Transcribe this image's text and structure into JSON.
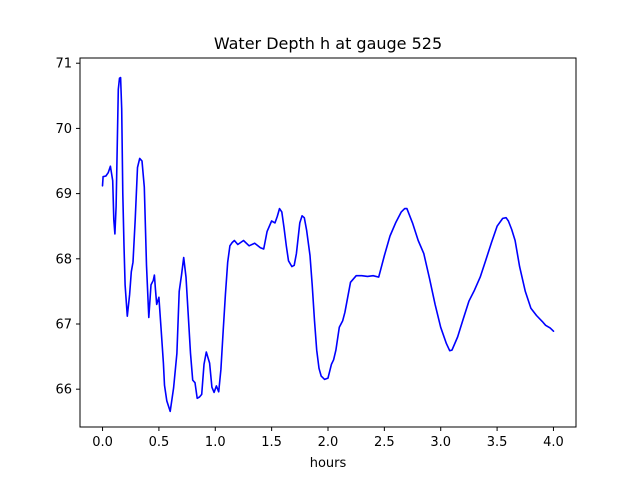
{
  "chart_data": {
    "type": "line",
    "title": "Water Depth h at gauge 525",
    "xlabel": "hours",
    "ylabel": "",
    "xlim": [
      -0.2,
      4.2
    ],
    "ylim": [
      65.42,
      71.08
    ],
    "xticks": [
      0.0,
      0.5,
      1.0,
      1.5,
      2.0,
      2.5,
      3.0,
      3.5,
      4.0
    ],
    "xtick_labels": [
      "0.0",
      "0.5",
      "1.0",
      "1.5",
      "2.0",
      "2.5",
      "3.0",
      "3.5",
      "4.0"
    ],
    "yticks": [
      66,
      67,
      68,
      69,
      70,
      71
    ],
    "ytick_labels": [
      "66",
      "67",
      "68",
      "69",
      "70",
      "71"
    ],
    "grid": false,
    "series": [
      {
        "color": "#0000ff",
        "x": [
          0.0,
          0.005,
          0.03,
          0.05,
          0.07,
          0.09,
          0.1,
          0.11,
          0.12,
          0.14,
          0.15,
          0.16,
          0.17,
          0.18,
          0.19,
          0.2,
          0.22,
          0.24,
          0.255,
          0.27,
          0.29,
          0.31,
          0.33,
          0.35,
          0.37,
          0.39,
          0.41,
          0.43,
          0.45,
          0.46,
          0.47,
          0.48,
          0.5,
          0.52,
          0.54,
          0.55,
          0.57,
          0.6,
          0.63,
          0.66,
          0.68,
          0.7,
          0.72,
          0.74,
          0.76,
          0.78,
          0.8,
          0.82,
          0.84,
          0.86,
          0.88,
          0.9,
          0.92,
          0.95,
          0.97,
          0.99,
          1.01,
          1.03,
          1.05,
          1.07,
          1.09,
          1.11,
          1.13,
          1.15,
          1.17,
          1.2,
          1.25,
          1.3,
          1.35,
          1.4,
          1.43,
          1.46,
          1.5,
          1.53,
          1.55,
          1.57,
          1.59,
          1.61,
          1.63,
          1.65,
          1.68,
          1.7,
          1.72,
          1.75,
          1.77,
          1.79,
          1.81,
          1.84,
          1.86,
          1.88,
          1.9,
          1.92,
          1.94,
          1.97,
          2.0,
          2.03,
          2.05,
          2.07,
          2.1,
          2.13,
          2.15,
          2.2,
          2.25,
          2.3,
          2.35,
          2.4,
          2.45,
          2.5,
          2.55,
          2.6,
          2.65,
          2.68,
          2.7,
          2.75,
          2.8,
          2.85,
          2.9,
          2.95,
          3.0,
          3.05,
          3.08,
          3.1,
          3.15,
          3.2,
          3.25,
          3.3,
          3.35,
          3.4,
          3.45,
          3.5,
          3.55,
          3.58,
          3.6,
          3.63,
          3.66,
          3.7,
          3.75,
          3.8,
          3.85,
          3.9,
          3.93,
          3.97,
          4.0
        ],
        "y": [
          69.12,
          69.26,
          69.27,
          69.32,
          69.42,
          69.2,
          68.6,
          68.38,
          68.8,
          70.6,
          70.77,
          70.78,
          70.3,
          69.0,
          68.2,
          67.6,
          67.12,
          67.45,
          67.8,
          67.95,
          68.6,
          69.4,
          69.54,
          69.5,
          69.1,
          67.9,
          67.1,
          67.6,
          67.67,
          67.75,
          67.52,
          67.3,
          67.41,
          66.9,
          66.4,
          66.06,
          65.82,
          65.66,
          66.02,
          66.55,
          67.5,
          67.75,
          68.02,
          67.72,
          67.15,
          66.55,
          66.14,
          66.1,
          65.86,
          65.88,
          65.92,
          66.38,
          66.57,
          66.4,
          66.03,
          65.95,
          66.05,
          65.96,
          66.3,
          66.9,
          67.45,
          67.95,
          68.2,
          68.25,
          68.28,
          68.22,
          68.28,
          68.2,
          68.24,
          68.17,
          68.15,
          68.42,
          68.58,
          68.55,
          68.65,
          68.77,
          68.72,
          68.48,
          68.2,
          67.97,
          67.88,
          67.9,
          68.08,
          68.55,
          68.66,
          68.63,
          68.44,
          68.05,
          67.6,
          67.05,
          66.6,
          66.32,
          66.2,
          66.15,
          66.17,
          66.38,
          66.45,
          66.6,
          66.95,
          67.05,
          67.18,
          67.64,
          67.74,
          67.74,
          67.73,
          67.74,
          67.72,
          68.05,
          68.35,
          68.55,
          68.72,
          68.77,
          68.77,
          68.55,
          68.28,
          68.08,
          67.7,
          67.3,
          66.95,
          66.7,
          66.59,
          66.6,
          66.8,
          67.08,
          67.35,
          67.52,
          67.72,
          67.98,
          68.25,
          68.5,
          68.62,
          68.63,
          68.58,
          68.45,
          68.28,
          67.88,
          67.5,
          67.24,
          67.13,
          67.04,
          66.98,
          66.94,
          66.89
        ]
      }
    ]
  }
}
